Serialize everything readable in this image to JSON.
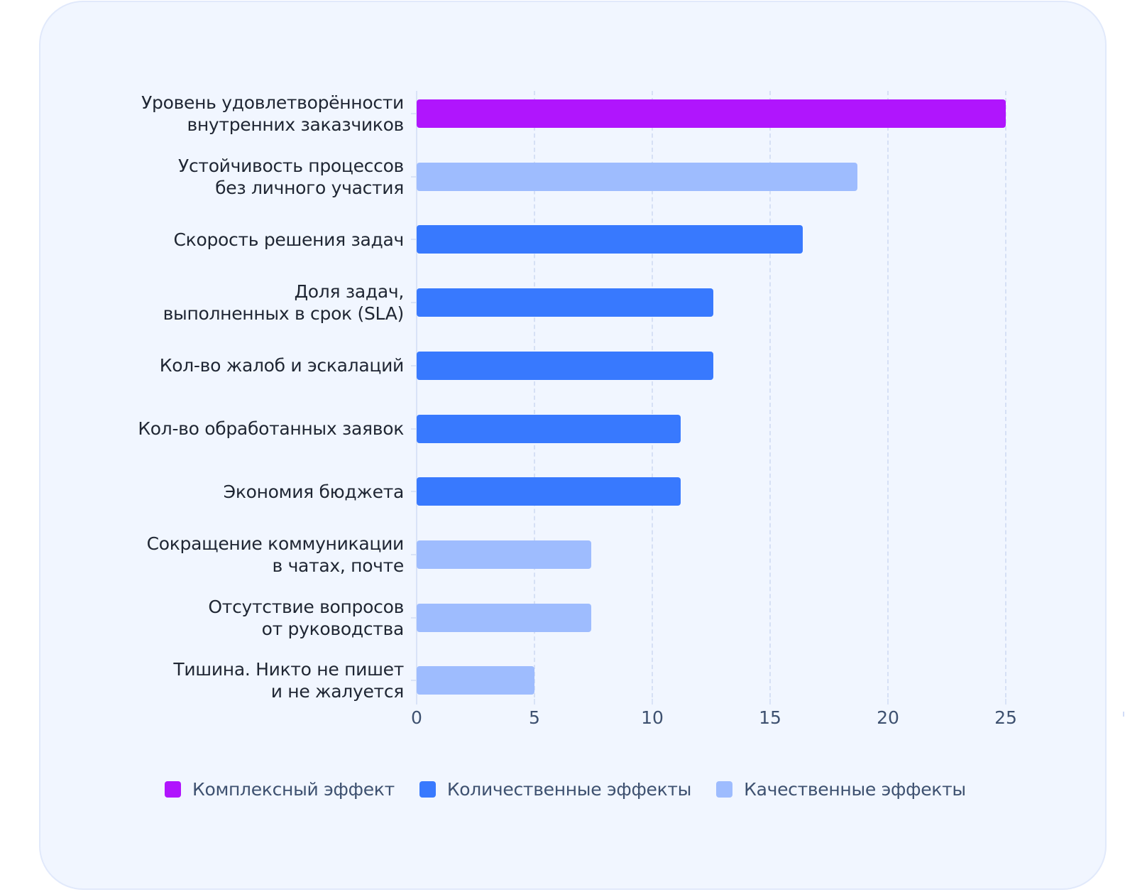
{
  "colors": {
    "card_bg": "#f1f6ff",
    "complex": "#b015fd",
    "quantitative": "#3879fe",
    "qualitative": "#9ebcfe",
    "label_text": "#1f2633",
    "axis_text": "#3e5170",
    "grid": "#d6e0f5"
  },
  "legend": [
    {
      "label": "Комплексный эффект",
      "color": "#b015fd"
    },
    {
      "label": "Количественные эффекты",
      "color": "#3879fe"
    },
    {
      "label": "Качественные эффекты",
      "color": "#9ebcfe"
    }
  ],
  "chart_data": {
    "type": "bar",
    "orientation": "horizontal",
    "title": "",
    "xlabel": "",
    "ylabel": "",
    "xlim": [
      0,
      25
    ],
    "x_ticks": [
      "0",
      "5",
      "10",
      "15",
      "20",
      "25"
    ],
    "grid": "vertical dashed",
    "legend_position": "bottom",
    "categories": [
      "Уровень удовлетворённости внутренних заказчиков",
      "Устойчивость процессов без личного участия",
      "Скорость решения задач",
      "Доля задач, выполненных в срок (SLA)",
      "Кол-во жалоб и эскалаций",
      "Кол-во обработанных заявок",
      "Экономия бюджета",
      "Сокращение коммуникации в чатах, почте",
      "Отсутствие вопросов от руководства",
      "Тишина. Никто не пишет и не жалуется"
    ],
    "values": [
      25,
      18.7,
      16.4,
      12.6,
      12.6,
      11.2,
      11.2,
      7.4,
      7.4,
      5.0
    ],
    "series_of_category": [
      "Комплексный эффект",
      "Качественные эффекты",
      "Количественные эффекты",
      "Количественные эффекты",
      "Количественные эффекты",
      "Количественные эффекты",
      "Количественные эффекты",
      "Качественные эффекты",
      "Качественные эффекты",
      "Качественные эффекты"
    ],
    "series": [
      {
        "name": "Комплексный эффект",
        "color": "#b015fd",
        "values": [
          25,
          null,
          null,
          null,
          null,
          null,
          null,
          null,
          null,
          null
        ]
      },
      {
        "name": "Количественные эффекты",
        "color": "#3879fe",
        "values": [
          null,
          null,
          16.4,
          12.6,
          12.6,
          11.2,
          11.2,
          null,
          null,
          null
        ]
      },
      {
        "name": "Качественные эффекты",
        "color": "#9ebcfe",
        "values": [
          null,
          18.7,
          null,
          null,
          null,
          null,
          null,
          7.4,
          7.4,
          5.0
        ]
      }
    ]
  },
  "rows": [
    {
      "line1": "Уровень удовлетворённости",
      "line2": "внутренних заказчиков",
      "value": 25,
      "color": "#b015fd"
    },
    {
      "line1": "Устойчивость процессов",
      "line2": "без личного участия",
      "value": 18.7,
      "color": "#9ebcfe"
    },
    {
      "line1": "Скорость решения задач",
      "line2": "",
      "value": 16.4,
      "color": "#3879fe"
    },
    {
      "line1": "Доля задач,",
      "line2": "выполненных в срок (SLA)",
      "value": 12.6,
      "color": "#3879fe"
    },
    {
      "line1": "Кол-во жалоб и эскалаций",
      "line2": "",
      "value": 12.6,
      "color": "#3879fe"
    },
    {
      "line1": "Кол-во обработанных заявок",
      "line2": "",
      "value": 11.2,
      "color": "#3879fe"
    },
    {
      "line1": "Экономия бюджета",
      "line2": "",
      "value": 11.2,
      "color": "#3879fe"
    },
    {
      "line1": "Сокращение коммуникации",
      "line2": "в чатах, почте",
      "value": 7.4,
      "color": "#9ebcfe"
    },
    {
      "line1": "Отсутствие вопросов",
      "line2": "от руководства",
      "value": 7.4,
      "color": "#9ebcfe"
    },
    {
      "line1": "Тишина. Никто не пишет",
      "line2": "и не жалуется",
      "value": 5.0,
      "color": "#9ebcfe"
    }
  ]
}
